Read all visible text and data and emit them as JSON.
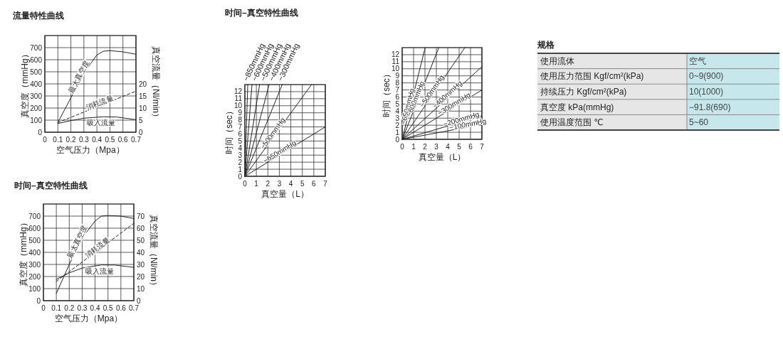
{
  "chart_data": [
    {
      "type": "line",
      "title": "流量特性曲线",
      "xlabel": "空气压力（Mpa）",
      "ylabel": "真空度（mmHg）",
      "y2label": "真空流量（Nl/min）",
      "xlim": [
        0,
        0.7
      ],
      "xticks": [
        0,
        0.1,
        0.2,
        0.3,
        0.4,
        0.5,
        0.6,
        0.7
      ],
      "ylim": [
        0,
        800
      ],
      "yticks": [
        0,
        100,
        200,
        300,
        400,
        500,
        600,
        700
      ],
      "y2lim": [
        0,
        40
      ],
      "y2ticks": [
        0,
        5,
        10,
        15,
        20
      ],
      "grid": true,
      "series": [
        {
          "name": "最大真空度",
          "color": "#222222",
          "x": [
            0.1,
            0.3,
            0.4,
            0.45,
            0.5,
            0.6,
            0.7
          ],
          "values": [
            80,
            490,
            640,
            670,
            675,
            665,
            645
          ]
        },
        {
          "name": "消耗流量",
          "color": "#222222",
          "axis": "y2",
          "line_style": "dashed",
          "x": [
            0.1,
            0.7
          ],
          "values": [
            4,
            17
          ]
        },
        {
          "name": "吸入流量",
          "color": "#222222",
          "axis": "y2",
          "x": [
            0.1,
            0.2,
            0.3,
            0.45,
            0.55,
            0.7
          ],
          "values": [
            3.6,
            4.8,
            5.8,
            6.4,
            6.3,
            5.2
          ]
        }
      ]
    },
    {
      "type": "line",
      "title": "时间–真空特性曲线",
      "xlabel": "真空量（L）",
      "ylabel": "时间（sec）",
      "xlim": [
        0,
        7
      ],
      "xticks": [
        0,
        1,
        2,
        3,
        4,
        5,
        6,
        7
      ],
      "ylim": [
        0,
        13
      ],
      "yticks": [
        0,
        1,
        2,
        3,
        4,
        5,
        6,
        7,
        8,
        9,
        10,
        11,
        12
      ],
      "grid": true,
      "series": [
        {
          "name": "−850mmHg",
          "color": "#222222",
          "x": [
            0,
            0.25
          ],
          "values": [
            0,
            13
          ]
        },
        {
          "name": "−600mmHg",
          "color": "#222222",
          "x": [
            0,
            0.62
          ],
          "values": [
            0,
            13
          ]
        },
        {
          "name": "−500mmHg",
          "color": "#222222",
          "x": [
            0,
            1.28
          ],
          "values": [
            0,
            13
          ]
        },
        {
          "name": "−400mmHg",
          "color": "#222222",
          "x": [
            0,
            2.11
          ],
          "values": [
            0,
            13
          ]
        },
        {
          "name": "−300mmHg",
          "color": "#222222",
          "x": [
            0,
            3.25
          ],
          "values": [
            0,
            13
          ]
        },
        {
          "name": "−500mmHg",
          "color": "#222222",
          "x": [
            0,
            5.8
          ],
          "values": [
            0,
            13
          ]
        },
        {
          "name": "−650mmHg",
          "color": "#222222",
          "x": [
            0,
            7
          ],
          "values": [
            0,
            7
          ]
        }
      ]
    },
    {
      "type": "line",
      "xlabel": "真空量（L）",
      "ylabel": "时间（sec）",
      "xlim": [
        0,
        7
      ],
      "xticks": [
        0,
        1,
        2,
        3,
        4,
        5,
        6,
        7
      ],
      "ylim": [
        0,
        13
      ],
      "yticks": [
        0,
        1,
        2,
        3,
        4,
        5,
        6,
        7,
        8,
        9,
        10,
        11,
        12
      ],
      "grid": true,
      "series": [
        {
          "name": "−650mmHg",
          "color": "#222222",
          "x": [
            0,
            2.02
          ],
          "values": [
            0,
            13
          ]
        },
        {
          "name": "−600mmHg",
          "color": "#222222",
          "x": [
            0,
            3.22
          ],
          "values": [
            0,
            13
          ]
        },
        {
          "name": "−500mmHg",
          "color": "#222222",
          "x": [
            0,
            5.5
          ],
          "values": [
            0,
            13
          ]
        },
        {
          "name": "−400mmHg",
          "color": "#222222",
          "x": [
            0,
            7
          ],
          "values": [
            0,
            10.3
          ]
        },
        {
          "name": "−300mmHg",
          "color": "#222222",
          "x": [
            0,
            7
          ],
          "values": [
            0,
            7
          ]
        },
        {
          "name": "−200mmHg",
          "color": "#222222",
          "x": [
            0,
            7
          ],
          "values": [
            0,
            3.3
          ]
        },
        {
          "name": "−100mmHg",
          "color": "#222222",
          "x": [
            0,
            7
          ],
          "values": [
            0,
            2.1
          ]
        }
      ]
    },
    {
      "type": "other",
      "title": "规格",
      "color": "#c6e7ec",
      "categories": [
        "使用流体",
        "使用压力范围 Kgf/cm²(kPa)",
        "持续压力 Kgf/cm²(kPa)",
        "真空度 kPa(mmHg)",
        "使用温度范围 ℃"
      ],
      "annotations": [
        "空气",
        "0~9(900)",
        "10(1000)",
        "−91.8(690)",
        "5~60"
      ]
    },
    {
      "type": "line",
      "title": "时间–真空特性曲线",
      "xlabel": "空气压力（Mpa）",
      "ylabel": "真空度（mmHg）",
      "y2label": "真空流量（Nl/min）",
      "xlim": [
        0,
        0.7
      ],
      "xticks": [
        0,
        0.1,
        0.2,
        0.3,
        0.4,
        0.5,
        0.6,
        0.7
      ],
      "ylim": [
        0,
        800
      ],
      "yticks": [
        0,
        100,
        200,
        300,
        400,
        500,
        600,
        700
      ],
      "y2lim": [
        0,
        80
      ],
      "y2ticks": [
        0,
        10,
        20,
        30,
        40,
        50,
        60,
        70
      ],
      "grid": true,
      "series": [
        {
          "name": "最大真空度",
          "color": "#222222",
          "x": [
            0.1,
            0.2,
            0.3,
            0.4,
            0.45,
            0.5,
            0.6,
            0.7
          ],
          "values": [
            60,
            300,
            520,
            660,
            700,
            705,
            700,
            680
          ]
        },
        {
          "name": "消耗流量",
          "color": "#222222",
          "axis": "y2",
          "line_style": "dashed",
          "x": [
            0.1,
            0.7
          ],
          "values": [
            16,
            64
          ]
        },
        {
          "name": "吸入流量",
          "color": "#222222",
          "axis": "y2",
          "x": [
            0.1,
            0.2,
            0.3,
            0.45,
            0.55,
            0.7
          ],
          "values": [
            17.7,
            23,
            27,
            29.6,
            29.5,
            27.6
          ]
        }
      ]
    }
  ]
}
